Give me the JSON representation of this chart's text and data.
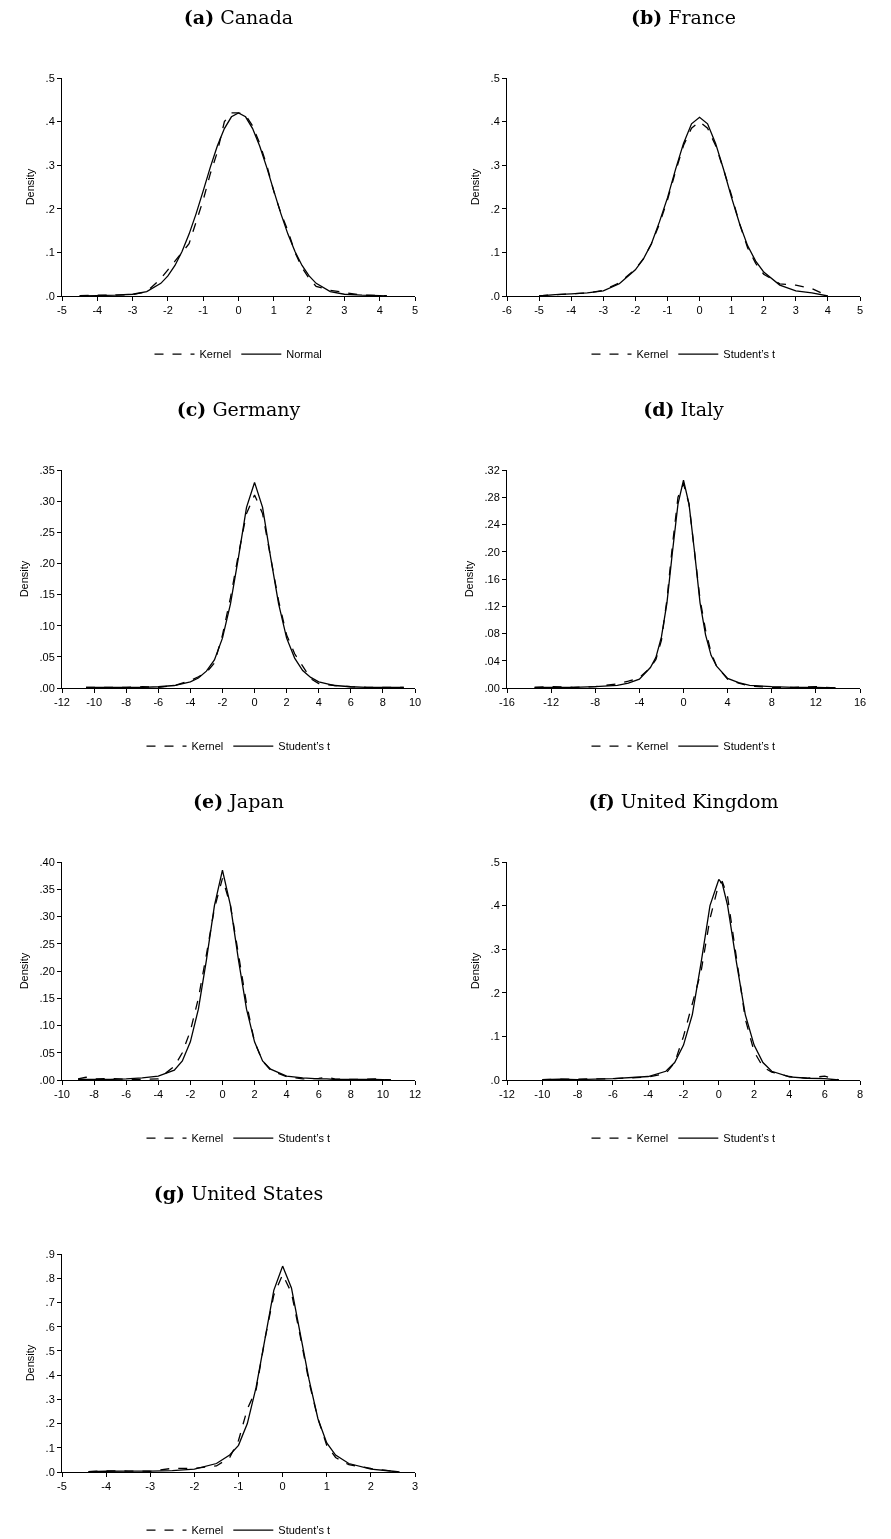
{
  "chart_data": [
    {
      "type": "line",
      "title": "(a) Canada",
      "ylabel": "Density",
      "legend": "bottom",
      "x": [
        -4.5,
        -4,
        -3.5,
        -3,
        -2.6,
        -2.2,
        -2,
        -1.8,
        -1.6,
        -1.4,
        -1.2,
        -1,
        -0.8,
        -0.6,
        -0.4,
        -0.2,
        0,
        0.2,
        0.4,
        0.6,
        0.8,
        1,
        1.2,
        1.4,
        1.6,
        1.8,
        2,
        2.2,
        2.6,
        3,
        3.5,
        4,
        4.2
      ],
      "series": [
        {
          "name": "Kernel",
          "color": "#000000",
          "line_style": "dashed",
          "values": [
            0.001,
            0.002,
            0.002,
            0.003,
            0.01,
            0.04,
            0.06,
            0.08,
            0.1,
            0.12,
            0.17,
            0.22,
            0.28,
            0.33,
            0.4,
            0.42,
            0.42,
            0.415,
            0.39,
            0.35,
            0.3,
            0.24,
            0.19,
            0.15,
            0.1,
            0.065,
            0.04,
            0.022,
            0.013,
            0.008,
            0.002,
            0.001,
            0.001
          ]
        },
        {
          "name": "Normal",
          "color": "#000000",
          "line_style": "solid",
          "values": [
            0,
            0.001,
            0.002,
            0.004,
            0.01,
            0.029,
            0.046,
            0.07,
            0.102,
            0.142,
            0.189,
            0.241,
            0.295,
            0.344,
            0.384,
            0.411,
            0.42,
            0.411,
            0.384,
            0.344,
            0.295,
            0.241,
            0.189,
            0.142,
            0.102,
            0.07,
            0.046,
            0.029,
            0.01,
            0.004,
            0.002,
            0.001,
            0
          ]
        }
      ],
      "xlim": [
        -5,
        5
      ],
      "xticks": [
        -5,
        -4,
        -3,
        -2,
        -1,
        0,
        1,
        2,
        3,
        4,
        5
      ],
      "ylim": [
        0,
        0.5
      ],
      "yticks": [
        {
          "value": 0,
          "label": ".0"
        },
        {
          "value": 0.1,
          "label": ".1"
        },
        {
          "value": 0.2,
          "label": ".2"
        },
        {
          "value": 0.3,
          "label": ".3"
        },
        {
          "value": 0.4,
          "label": ".4"
        },
        {
          "value": 0.5,
          "label": ".5"
        }
      ]
    },
    {
      "type": "line",
      "title": "(b) France",
      "ylabel": "Density",
      "legend": "bottom",
      "x": [
        -5,
        -4.5,
        -4,
        -3.5,
        -3,
        -2.5,
        -2,
        -1.75,
        -1.5,
        -1.25,
        -1,
        -0.75,
        -0.5,
        -0.25,
        0,
        0.25,
        0.5,
        0.75,
        1,
        1.25,
        1.5,
        1.75,
        2,
        2.5,
        3,
        3.5,
        4
      ],
      "series": [
        {
          "name": "Kernel",
          "color": "#000000",
          "line_style": "dashed",
          "values": [
            0,
            0.003,
            0.005,
            0.007,
            0.013,
            0.03,
            0.062,
            0.085,
            0.12,
            0.165,
            0.22,
            0.285,
            0.345,
            0.385,
            0.4,
            0.385,
            0.345,
            0.29,
            0.23,
            0.165,
            0.11,
            0.075,
            0.05,
            0.028,
            0.025,
            0.017,
            0
          ]
        },
        {
          "name": "Student’s t",
          "color": "#000000",
          "line_style": "solid",
          "values": [
            0,
            0.003,
            0.005,
            0.007,
            0.012,
            0.028,
            0.06,
            0.085,
            0.12,
            0.17,
            0.225,
            0.29,
            0.35,
            0.395,
            0.41,
            0.395,
            0.35,
            0.29,
            0.225,
            0.165,
            0.115,
            0.08,
            0.055,
            0.025,
            0.012,
            0.007,
            0
          ]
        }
      ],
      "xlim": [
        -6,
        5
      ],
      "xticks": [
        -6,
        -5,
        -4,
        -3,
        -2,
        -1,
        0,
        1,
        2,
        3,
        4,
        5
      ],
      "ylim": [
        0,
        0.5
      ],
      "yticks": [
        {
          "value": 0,
          "label": ".0"
        },
        {
          "value": 0.1,
          "label": ".1"
        },
        {
          "value": 0.2,
          "label": ".2"
        },
        {
          "value": 0.3,
          "label": ".3"
        },
        {
          "value": 0.4,
          "label": ".4"
        },
        {
          "value": 0.5,
          "label": ".5"
        }
      ]
    },
    {
      "type": "line",
      "title": "(c) Germany",
      "ylabel": "Density",
      "legend": "bottom",
      "x": [
        -10.5,
        -9,
        -8,
        -7,
        -6,
        -5,
        -4,
        -3.5,
        -3,
        -2.5,
        -2,
        -1.5,
        -1,
        -0.5,
        0,
        0.5,
        1,
        1.5,
        2,
        2.5,
        3,
        3.5,
        4,
        5,
        6,
        7,
        8,
        9.3
      ],
      "series": [
        {
          "name": "Kernel",
          "color": "#000000",
          "line_style": "dashed",
          "values": [
            0.001,
            0.001,
            0.001,
            0.002,
            0.001,
            0.004,
            0.012,
            0.018,
            0.025,
            0.04,
            0.085,
            0.145,
            0.215,
            0.28,
            0.31,
            0.28,
            0.21,
            0.14,
            0.085,
            0.055,
            0.035,
            0.015,
            0.007,
            0.004,
            0.002,
            0.001,
            0.001,
            0.001
          ]
        },
        {
          "name": "Student’s t",
          "color": "#000000",
          "line_style": "solid",
          "values": [
            0.001,
            0.001,
            0.001,
            0.001,
            0.002,
            0.004,
            0.01,
            0.016,
            0.027,
            0.045,
            0.08,
            0.135,
            0.21,
            0.29,
            0.33,
            0.29,
            0.21,
            0.135,
            0.08,
            0.048,
            0.028,
            0.017,
            0.01,
            0.004,
            0.002,
            0.001,
            0.001,
            0.001
          ]
        }
      ],
      "xlim": [
        -12,
        10
      ],
      "xticks": [
        -12,
        -10,
        -8,
        -6,
        -4,
        -2,
        0,
        2,
        4,
        6,
        8,
        10
      ],
      "ylim": [
        0,
        0.35
      ],
      "yticks": [
        {
          "value": 0,
          "label": ".00"
        },
        {
          "value": 0.05,
          "label": ".05"
        },
        {
          "value": 0.1,
          "label": ".10"
        },
        {
          "value": 0.15,
          "label": ".15"
        },
        {
          "value": 0.2,
          "label": ".20"
        },
        {
          "value": 0.25,
          "label": ".25"
        },
        {
          "value": 0.3,
          "label": ".30"
        },
        {
          "value": 0.35,
          "label": ".35"
        }
      ]
    },
    {
      "type": "line",
      "title": "(d) Italy",
      "ylabel": "Density",
      "legend": "bottom",
      "x": [
        -13.5,
        -12,
        -10,
        -8,
        -6,
        -5,
        -4,
        -3,
        -2.5,
        -2,
        -1.5,
        -1,
        -0.5,
        0,
        0.5,
        1,
        1.5,
        2,
        2.5,
        3,
        4,
        5,
        6,
        8,
        10,
        12,
        13.8
      ],
      "series": [
        {
          "name": "Kernel",
          "color": "#000000",
          "line_style": "dashed",
          "values": [
            0.001,
            0.002,
            0.001,
            0.002,
            0.006,
            0.01,
            0.015,
            0.03,
            0.042,
            0.07,
            0.13,
            0.21,
            0.28,
            0.3,
            0.27,
            0.2,
            0.13,
            0.085,
            0.052,
            0.032,
            0.013,
            0.007,
            0.003,
            0.001,
            0.001,
            0.002,
            0
          ]
        },
        {
          "name": "Student’s t",
          "color": "#000000",
          "line_style": "solid",
          "values": [
            0.001,
            0.001,
            0.001,
            0.002,
            0.004,
            0.007,
            0.013,
            0.03,
            0.045,
            0.075,
            0.125,
            0.2,
            0.27,
            0.305,
            0.27,
            0.2,
            0.125,
            0.078,
            0.048,
            0.032,
            0.014,
            0.008,
            0.004,
            0.002,
            0.001,
            0.001,
            0
          ]
        }
      ],
      "xlim": [
        -16,
        16
      ],
      "xticks": [
        -16,
        -12,
        -8,
        -4,
        0,
        4,
        8,
        12,
        16
      ],
      "ylim": [
        0,
        0.32
      ],
      "yticks": [
        {
          "value": 0,
          "label": ".00"
        },
        {
          "value": 0.04,
          "label": ".04"
        },
        {
          "value": 0.08,
          "label": ".08"
        },
        {
          "value": 0.12,
          "label": ".12"
        },
        {
          "value": 0.16,
          "label": ".16"
        },
        {
          "value": 0.2,
          "label": ".20"
        },
        {
          "value": 0.24,
          "label": ".24"
        },
        {
          "value": 0.28,
          "label": ".28"
        },
        {
          "value": 0.32,
          "label": ".32"
        }
      ]
    },
    {
      "type": "line",
      "title": "(e) Japan",
      "ylabel": "Density",
      "legend": "bottom",
      "x": [
        -9,
        -8.5,
        -8,
        -7,
        -6,
        -5,
        -4,
        -3,
        -2.5,
        -2,
        -1.5,
        -1,
        -0.5,
        0,
        0.5,
        1,
        1.5,
        2,
        2.5,
        3,
        4,
        5,
        6,
        6.5,
        7,
        8,
        9.5,
        10.5
      ],
      "series": [
        {
          "name": "Kernel",
          "color": "#000000",
          "line_style": "dashed",
          "values": [
            0.002,
            0.005,
            0.002,
            0.003,
            0.001,
            0.001,
            0.002,
            0.025,
            0.05,
            0.09,
            0.15,
            0.23,
            0.315,
            0.37,
            0.32,
            0.23,
            0.14,
            0.07,
            0.035,
            0.018,
            0.006,
            0.002,
            0.003,
            0.005,
            0.002,
            0.001,
            0.002,
            0
          ]
        },
        {
          "name": "Student’s t",
          "color": "#000000",
          "line_style": "solid",
          "values": [
            0.001,
            0.001,
            0.001,
            0.001,
            0.002,
            0.004,
            0.007,
            0.018,
            0.035,
            0.07,
            0.13,
            0.22,
            0.32,
            0.385,
            0.32,
            0.22,
            0.13,
            0.07,
            0.035,
            0.02,
            0.007,
            0.004,
            0.002,
            0.002,
            0.001,
            0.001,
            0.001,
            0
          ]
        }
      ],
      "xlim": [
        -10,
        12
      ],
      "xticks": [
        -10,
        -8,
        -6,
        -4,
        -2,
        0,
        2,
        4,
        6,
        8,
        10,
        12
      ],
      "ylim": [
        0,
        0.4
      ],
      "yticks": [
        {
          "value": 0,
          "label": ".00"
        },
        {
          "value": 0.05,
          "label": ".05"
        },
        {
          "value": 0.1,
          "label": ".10"
        },
        {
          "value": 0.15,
          "label": ".15"
        },
        {
          "value": 0.2,
          "label": ".20"
        },
        {
          "value": 0.25,
          "label": ".25"
        },
        {
          "value": 0.3,
          "label": ".30"
        },
        {
          "value": 0.35,
          "label": ".35"
        },
        {
          "value": 0.4,
          "label": ".40"
        }
      ]
    },
    {
      "type": "line",
      "title": "(f) United Kingdom",
      "ylabel": "Density",
      "legend": "bottom",
      "x": [
        -10,
        -9,
        -8,
        -6,
        -4,
        -3,
        -2.5,
        -2,
        -1.5,
        -1,
        -0.5,
        0,
        0.2,
        0.5,
        1,
        1.5,
        2,
        2.5,
        3,
        4,
        5,
        6,
        6.8
      ],
      "series": [
        {
          "name": "Kernel",
          "color": "#000000",
          "line_style": "dashed",
          "values": [
            0.001,
            0.002,
            0.002,
            0.003,
            0.007,
            0.015,
            0.04,
            0.1,
            0.175,
            0.25,
            0.37,
            0.45,
            0.455,
            0.42,
            0.28,
            0.14,
            0.065,
            0.03,
            0.018,
            0.008,
            0.004,
            0.009,
            0
          ]
        },
        {
          "name": "Student’s t",
          "color": "#000000",
          "line_style": "solid",
          "values": [
            0.001,
            0.002,
            0.001,
            0.003,
            0.008,
            0.02,
            0.04,
            0.08,
            0.15,
            0.27,
            0.4,
            0.46,
            0.45,
            0.4,
            0.27,
            0.15,
            0.08,
            0.04,
            0.02,
            0.007,
            0.004,
            0.003,
            0
          ]
        }
      ],
      "xlim": [
        -12,
        8
      ],
      "xticks": [
        -12,
        -10,
        -8,
        -6,
        -4,
        -2,
        0,
        2,
        4,
        6,
        8
      ],
      "ylim": [
        0,
        0.5
      ],
      "yticks": [
        {
          "value": 0,
          "label": ".0"
        },
        {
          "value": 0.1,
          "label": ".1"
        },
        {
          "value": 0.2,
          "label": ".2"
        },
        {
          "value": 0.3,
          "label": ".3"
        },
        {
          "value": 0.4,
          "label": ".4"
        },
        {
          "value": 0.5,
          "label": ".5"
        }
      ]
    },
    {
      "type": "line",
      "title": "(g) United States",
      "ylabel": "Density",
      "legend": "bottom",
      "x": [
        -4.4,
        -4,
        -3.5,
        -3,
        -2.5,
        -2,
        -1.5,
        -1.2,
        -1,
        -0.8,
        -0.6,
        -0.4,
        -0.2,
        0,
        0.2,
        0.4,
        0.6,
        0.8,
        1,
        1.2,
        1.5,
        2,
        2.5,
        2.65
      ],
      "series": [
        {
          "name": "Kernel",
          "color": "#000000",
          "line_style": "dashed",
          "values": [
            0.001,
            0.005,
            0.004,
            0.003,
            0.015,
            0.015,
            0.025,
            0.06,
            0.13,
            0.26,
            0.34,
            0.55,
            0.73,
            0.815,
            0.74,
            0.56,
            0.37,
            0.22,
            0.11,
            0.06,
            0.03,
            0.015,
            0.003,
            0
          ]
        },
        {
          "name": "Student’s t",
          "color": "#000000",
          "line_style": "solid",
          "values": [
            0.001,
            0.003,
            0.004,
            0.004,
            0.006,
            0.012,
            0.035,
            0.07,
            0.11,
            0.2,
            0.35,
            0.55,
            0.75,
            0.85,
            0.76,
            0.57,
            0.38,
            0.22,
            0.12,
            0.07,
            0.035,
            0.012,
            0.003,
            0
          ]
        }
      ],
      "xlim": [
        -5,
        3
      ],
      "xticks": [
        -5,
        -4,
        -3,
        -2,
        -1,
        0,
        1,
        2,
        3
      ],
      "ylim": [
        0,
        0.9
      ],
      "yticks": [
        {
          "value": 0,
          "label": ".0"
        },
        {
          "value": 0.1,
          "label": ".1"
        },
        {
          "value": 0.2,
          "label": ".2"
        },
        {
          "value": 0.3,
          "label": ".3"
        },
        {
          "value": 0.4,
          "label": ".4"
        },
        {
          "value": 0.5,
          "label": ".5"
        },
        {
          "value": 0.6,
          "label": ".6"
        },
        {
          "value": 0.7,
          "label": ".7"
        },
        {
          "value": 0.8,
          "label": ".8"
        },
        {
          "value": 0.9,
          "label": ".9"
        }
      ]
    }
  ]
}
